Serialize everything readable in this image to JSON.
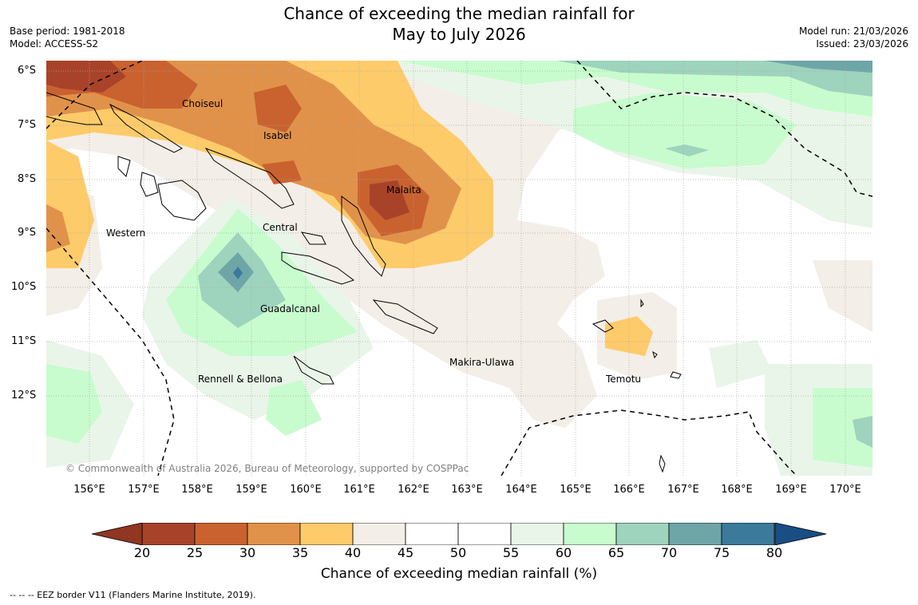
{
  "title": {
    "line1": "Chance of exceeding the median rainfall for",
    "line2": "May to July 2026"
  },
  "meta_left": {
    "base_period": "Base period: 1981-2018",
    "model": "Model: ACCESS-S2"
  },
  "meta_right": {
    "model_run": "Model run: 21/03/2026",
    "issued": "Issued: 23/03/2026"
  },
  "axes": {
    "lat_labels": [
      "6°S",
      "7°S",
      "8°S",
      "9°S",
      "10°S",
      "11°S",
      "12°S"
    ],
    "lon_labels": [
      "156°E",
      "157°E",
      "158°E",
      "159°E",
      "160°E",
      "161°E",
      "162°E",
      "163°E",
      "164°E",
      "165°E",
      "166°E",
      "167°E",
      "168°E",
      "169°E",
      "170°E"
    ],
    "lat_range": [
      -13.5,
      -5.8
    ],
    "lon_range": [
      155.2,
      170.5
    ]
  },
  "regions": {
    "choiseul": "Choiseul",
    "isabel": "Isabel",
    "malaita": "Malaita",
    "western": "Western",
    "central": "Central",
    "guadalcanal": "Guadalcanal",
    "rennell": "Rennell & Bellona",
    "makira": "Makira-Ulawa",
    "temotu": "Temotu"
  },
  "copyright": "© Commonwealth of Australia 2026, Bureau of Meteorology, supported by COSPPac",
  "colorbar": {
    "title": "Chance of exceeding median rainfall (%)",
    "ticks": [
      "20",
      "25",
      "30",
      "35",
      "40",
      "45",
      "50",
      "55",
      "60",
      "65",
      "70",
      "75",
      "80"
    ],
    "colors": [
      "#a8432a",
      "#c9622f",
      "#e1924a",
      "#fecb6a",
      "#f3eee7",
      "#ffffff",
      "#ffffff",
      "#eaf5e9",
      "#c8fcce",
      "#9ed3bd",
      "#6ea6a8",
      "#3b7a9b"
    ],
    "under_color": "#913620",
    "over_color": "#194e85"
  },
  "footnote": "--  --  -- EEZ border V11 (Flanders Marine Institute, 2019)."
}
